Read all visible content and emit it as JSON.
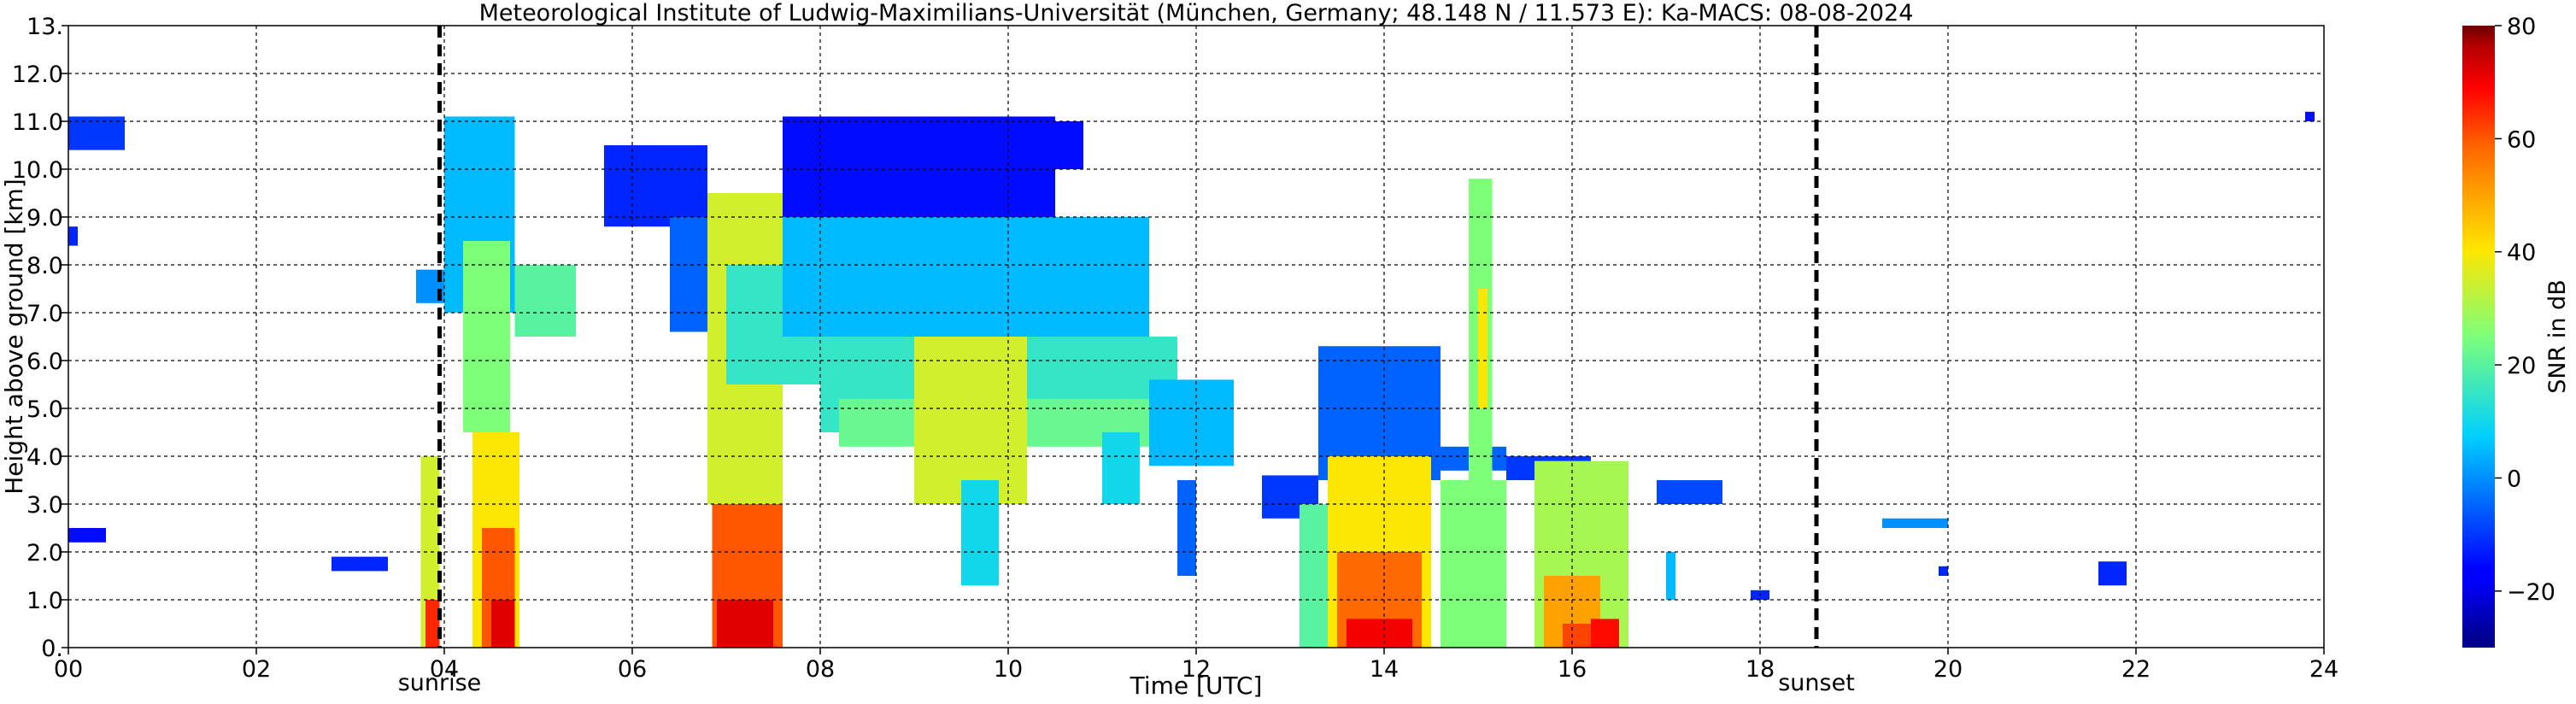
{
  "chart_data": {
    "type": "heatmap",
    "title": "Meteorological Institute of Ludwig-Maximilians-Universität (München, Germany; 48.148 N / 11.573 E):    Ka-MACS: 08-08-2024",
    "xlabel": "Time [UTC]",
    "ylabel": "Height above ground [km]",
    "xlim": [
      0,
      24
    ],
    "ylim": [
      0,
      13
    ],
    "x_ticks": [
      0,
      2,
      4,
      6,
      8,
      10,
      12,
      14,
      16,
      18,
      20,
      22,
      24
    ],
    "x_tick_labels": [
      "00",
      "02",
      "04",
      "06",
      "08",
      "10",
      "12",
      "14",
      "16",
      "18",
      "20",
      "22",
      "24"
    ],
    "y_ticks": [
      0,
      1,
      2,
      3,
      4,
      5,
      6,
      7,
      8,
      9,
      10,
      11,
      12,
      13
    ],
    "y_tick_labels": [
      "0.",
      "1.0",
      "2.0",
      "3.0",
      "4.0",
      "5.0",
      "6.0",
      "7.0",
      "8.0",
      "9.0",
      "10.0",
      "11.0",
      "12.0",
      "13."
    ],
    "grid": true,
    "colorbar": {
      "label": "SNR in dB",
      "range": [
        -30,
        80
      ],
      "ticks": [
        -20,
        0,
        20,
        40,
        60,
        80
      ],
      "tick_labels": [
        "−20",
        "0",
        "20",
        "40",
        "60",
        "80"
      ],
      "colormap": "jet"
    },
    "markers": [
      {
        "x": 3.95,
        "label": "sunrise"
      },
      {
        "x": 18.6,
        "label": "sunset"
      }
    ],
    "echoes": [
      {
        "t0": 0.0,
        "t1": 0.6,
        "h0": 10.4,
        "h1": 11.1,
        "snr": -10
      },
      {
        "t0": 0.0,
        "t1": 0.1,
        "h0": 8.4,
        "h1": 8.8,
        "snr": -12
      },
      {
        "t0": 0.0,
        "t1": 0.4,
        "h0": 2.2,
        "h1": 2.5,
        "snr": -15
      },
      {
        "t0": 2.8,
        "t1": 3.4,
        "h0": 1.6,
        "h1": 1.9,
        "snr": -12
      },
      {
        "t0": 3.7,
        "t1": 4.0,
        "h0": 7.2,
        "h1": 7.9,
        "snr": 0
      },
      {
        "t0": 3.75,
        "t1": 3.95,
        "h0": 0.0,
        "h1": 4.0,
        "snr": 35
      },
      {
        "t0": 3.8,
        "t1": 3.95,
        "h0": 0.0,
        "h1": 1.0,
        "snr": 65
      },
      {
        "t0": 4.0,
        "t1": 4.75,
        "h0": 7.0,
        "h1": 11.1,
        "snr": 5
      },
      {
        "t0": 4.2,
        "t1": 4.7,
        "h0": 4.5,
        "h1": 8.5,
        "snr": 25
      },
      {
        "t0": 4.3,
        "t1": 4.8,
        "h0": 0.0,
        "h1": 4.5,
        "snr": 40
      },
      {
        "t0": 4.4,
        "t1": 4.75,
        "h0": 0.0,
        "h1": 2.5,
        "snr": 60
      },
      {
        "t0": 4.5,
        "t1": 4.75,
        "h0": 0.0,
        "h1": 1.0,
        "snr": 72
      },
      {
        "t0": 4.75,
        "t1": 5.4,
        "h0": 6.5,
        "h1": 8.0,
        "snr": 20
      },
      {
        "t0": 5.7,
        "t1": 6.8,
        "h0": 8.8,
        "h1": 10.5,
        "snr": -12
      },
      {
        "t0": 6.4,
        "t1": 7.0,
        "h0": 6.6,
        "h1": 9.0,
        "snr": -5
      },
      {
        "t0": 6.8,
        "t1": 7.6,
        "h0": 3.0,
        "h1": 9.5,
        "snr": 35
      },
      {
        "t0": 6.85,
        "t1": 7.6,
        "h0": 0.0,
        "h1": 3.0,
        "snr": 60
      },
      {
        "t0": 6.9,
        "t1": 7.5,
        "h0": 0.0,
        "h1": 1.0,
        "snr": 72
      },
      {
        "t0": 7.0,
        "t1": 8.0,
        "h0": 5.5,
        "h1": 8.0,
        "snr": 15
      },
      {
        "t0": 7.6,
        "t1": 10.5,
        "h0": 9.0,
        "h1": 11.1,
        "snr": -15
      },
      {
        "t0": 7.6,
        "t1": 11.5,
        "h0": 6.5,
        "h1": 9.0,
        "snr": 5
      },
      {
        "t0": 8.0,
        "t1": 11.8,
        "h0": 4.5,
        "h1": 6.5,
        "snr": 15
      },
      {
        "t0": 8.2,
        "t1": 11.5,
        "h0": 4.2,
        "h1": 5.2,
        "snr": 22
      },
      {
        "t0": 9.0,
        "t1": 10.2,
        "h0": 3.0,
        "h1": 6.5,
        "snr": 35
      },
      {
        "t0": 9.5,
        "t1": 9.9,
        "h0": 1.3,
        "h1": 3.5,
        "snr": 10
      },
      {
        "t0": 10.4,
        "t1": 10.8,
        "h0": 10.0,
        "h1": 11.0,
        "snr": -15
      },
      {
        "t0": 11.5,
        "t1": 12.4,
        "h0": 3.8,
        "h1": 5.6,
        "snr": 5
      },
      {
        "t0": 11.0,
        "t1": 11.4,
        "h0": 3.0,
        "h1": 4.5,
        "snr": 10
      },
      {
        "t0": 11.8,
        "t1": 12.0,
        "h0": 1.5,
        "h1": 3.5,
        "snr": -5
      },
      {
        "t0": 12.7,
        "t1": 13.3,
        "h0": 2.7,
        "h1": 3.6,
        "snr": -10
      },
      {
        "t0": 13.1,
        "t1": 13.5,
        "h0": 0.0,
        "h1": 3.0,
        "snr": 20
      },
      {
        "t0": 13.3,
        "t1": 14.6,
        "h0": 3.5,
        "h1": 6.3,
        "snr": -5
      },
      {
        "t0": 13.4,
        "t1": 14.5,
        "h0": 0.0,
        "h1": 4.0,
        "snr": 40
      },
      {
        "t0": 13.5,
        "t1": 14.4,
        "h0": 0.0,
        "h1": 2.0,
        "snr": 58
      },
      {
        "t0": 13.6,
        "t1": 14.3,
        "h0": 0.0,
        "h1": 0.6,
        "snr": 70
      },
      {
        "t0": 14.5,
        "t1": 15.3,
        "h0": 3.7,
        "h1": 4.2,
        "snr": -5
      },
      {
        "t0": 14.6,
        "t1": 15.3,
        "h0": 0.0,
        "h1": 3.5,
        "snr": 25
      },
      {
        "t0": 14.9,
        "t1": 15.15,
        "h0": 3.5,
        "h1": 9.8,
        "snr": 25
      },
      {
        "t0": 15.0,
        "t1": 15.1,
        "h0": 5.0,
        "h1": 7.5,
        "snr": 40
      },
      {
        "t0": 15.3,
        "t1": 16.2,
        "h0": 3.5,
        "h1": 4.0,
        "snr": -10
      },
      {
        "t0": 15.6,
        "t1": 16.6,
        "h0": 0.0,
        "h1": 3.9,
        "snr": 30
      },
      {
        "t0": 15.7,
        "t1": 16.3,
        "h0": 0.0,
        "h1": 1.5,
        "snr": 50
      },
      {
        "t0": 15.9,
        "t1": 16.2,
        "h0": 0.0,
        "h1": 0.5,
        "snr": 62
      },
      {
        "t0": 16.2,
        "t1": 16.5,
        "h0": 0.0,
        "h1": 0.6,
        "snr": 68
      },
      {
        "t0": 16.9,
        "t1": 17.6,
        "h0": 3.0,
        "h1": 3.5,
        "snr": -8
      },
      {
        "t0": 17.0,
        "t1": 17.1,
        "h0": 1.0,
        "h1": 2.0,
        "snr": 5
      },
      {
        "t0": 17.9,
        "t1": 18.1,
        "h0": 1.0,
        "h1": 1.2,
        "snr": -12
      },
      {
        "t0": 19.3,
        "t1": 20.0,
        "h0": 2.5,
        "h1": 2.7,
        "snr": 0
      },
      {
        "t0": 19.9,
        "t1": 20.0,
        "h0": 1.5,
        "h1": 1.7,
        "snr": -12
      },
      {
        "t0": 21.6,
        "t1": 21.9,
        "h0": 1.3,
        "h1": 1.8,
        "snr": -12
      },
      {
        "t0": 23.8,
        "t1": 23.9,
        "h0": 11.0,
        "h1": 11.2,
        "snr": -15
      }
    ]
  }
}
